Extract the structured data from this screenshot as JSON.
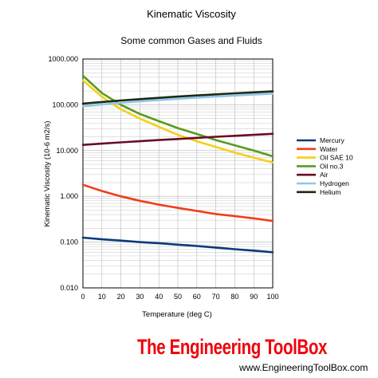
{
  "chart_data": {
    "type": "line",
    "title": "Kinematic Viscosity",
    "subtitle": "Some common Gases and Fluids",
    "xlabel": "Temperature (deg C)",
    "ylabel": "Kinematic Viscosity (10-6 m2/s)",
    "x": [
      0,
      10,
      20,
      30,
      40,
      50,
      60,
      70,
      80,
      90,
      100
    ],
    "x_ticks": [
      "0",
      "10",
      "20",
      "30",
      "40",
      "50",
      "60",
      "70",
      "80",
      "90",
      "100"
    ],
    "xlim": [
      0,
      100
    ],
    "ylim": [
      0.01,
      1000
    ],
    "y_scale": "log",
    "y_ticks": [
      {
        "value": 1000,
        "label": "1000.000"
      },
      {
        "value": 100,
        "label": "100.000"
      },
      {
        "value": 10,
        "label": "10.000"
      },
      {
        "value": 1,
        "label": "1.000"
      },
      {
        "value": 0.1,
        "label": "0.100"
      },
      {
        "value": 0.01,
        "label": "0.010"
      }
    ],
    "grid": true,
    "legend_position": "right",
    "series": [
      {
        "name": "Mercury",
        "color": "#0b3a78",
        "values": [
          0.125,
          0.115,
          0.108,
          0.1,
          0.095,
          0.088,
          0.082,
          0.076,
          0.07,
          0.065,
          0.06
        ]
      },
      {
        "name": "Water",
        "color": "#ee3e1a",
        "values": [
          1.79,
          1.31,
          1.0,
          0.8,
          0.66,
          0.56,
          0.48,
          0.41,
          0.37,
          0.33,
          0.29
        ]
      },
      {
        "name": "Oil SAE 10",
        "color": "#f5cf1a",
        "values": [
          340,
          150,
          80,
          50,
          33,
          22,
          16,
          12,
          9,
          7,
          5.5
        ]
      },
      {
        "name": "Oil no.3",
        "color": "#5a9a1e",
        "values": [
          430,
          180,
          100,
          63,
          44,
          31,
          23,
          17,
          13,
          10,
          7.5
        ]
      },
      {
        "name": "Air",
        "color": "#6a0c26",
        "values": [
          13.3,
          14.2,
          15.1,
          16.0,
          17.0,
          17.9,
          18.9,
          20.0,
          21.0,
          22.0,
          23.2
        ]
      },
      {
        "name": "Hydrogen",
        "color": "#8fc6ea",
        "values": [
          93,
          102,
          110,
          119,
          127,
          135,
          143,
          151,
          159,
          167,
          175
        ]
      },
      {
        "name": "Helium",
        "color": "#1c2b10",
        "values": [
          106,
          115,
          124,
          133,
          142,
          151,
          160,
          169,
          178,
          187,
          196
        ]
      }
    ]
  },
  "branding": {
    "name": "The Engineering ToolBox",
    "url": "www.EngineeringToolBox.com"
  }
}
